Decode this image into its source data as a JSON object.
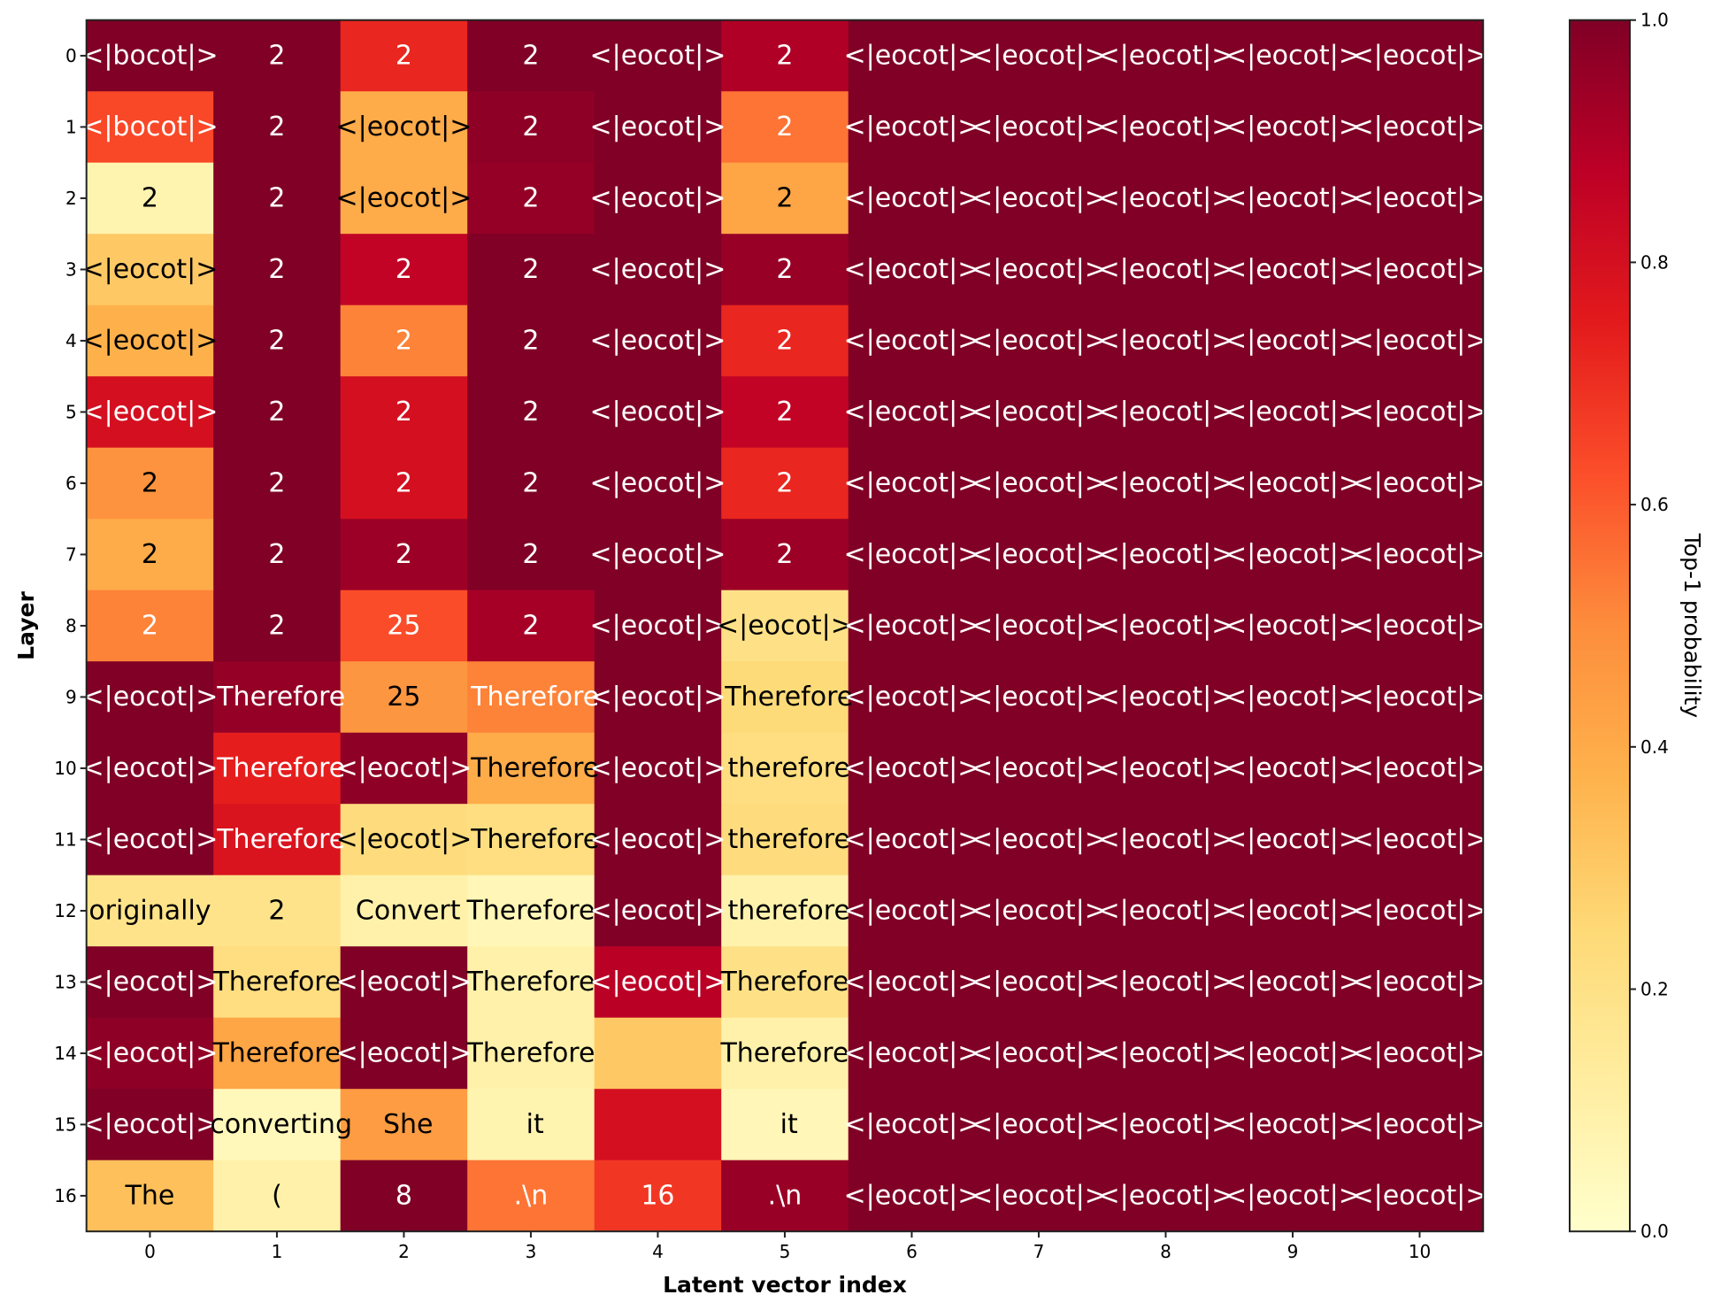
{
  "chart_data": {
    "type": "heatmap",
    "title": "",
    "xlabel": "Latent vector index",
    "ylabel": "Layer",
    "x": [
      "0",
      "1",
      "2",
      "3",
      "4",
      "5",
      "6",
      "7",
      "8",
      "9",
      "10"
    ],
    "y": [
      "0",
      "1",
      "2",
      "3",
      "4",
      "5",
      "6",
      "7",
      "8",
      "9",
      "10",
      "11",
      "12",
      "13",
      "14",
      "15",
      "16"
    ],
    "colormap": "YlOrRd",
    "colorbar": {
      "label": "Top-1 probability",
      "range": [
        0.0,
        1.0
      ],
      "ticks": [
        "0.0",
        "0.2",
        "0.4",
        "0.6",
        "0.8",
        "1.0"
      ]
    },
    "labels": [
      [
        "<|bocot|>",
        "2",
        "2",
        "2",
        "<|eocot|>",
        "2",
        "<|eocot|>",
        "<|eocot|>",
        "<|eocot|>",
        "<|eocot|>",
        "<|eocot|>"
      ],
      [
        "<|bocot|>",
        "2",
        "<|eocot|>",
        "2",
        "<|eocot|>",
        "2",
        "<|eocot|>",
        "<|eocot|>",
        "<|eocot|>",
        "<|eocot|>",
        "<|eocot|>"
      ],
      [
        "2",
        "2",
        "<|eocot|>",
        "2",
        "<|eocot|>",
        "2",
        "<|eocot|>",
        "<|eocot|>",
        "<|eocot|>",
        "<|eocot|>",
        "<|eocot|>"
      ],
      [
        "<|eocot|>",
        "2",
        "2",
        "2",
        "<|eocot|>",
        "2",
        "<|eocot|>",
        "<|eocot|>",
        "<|eocot|>",
        "<|eocot|>",
        "<|eocot|>"
      ],
      [
        "<|eocot|>",
        "2",
        "2",
        "2",
        "<|eocot|>",
        "2",
        "<|eocot|>",
        "<|eocot|>",
        "<|eocot|>",
        "<|eocot|>",
        "<|eocot|>"
      ],
      [
        "<|eocot|>",
        "2",
        "2",
        "2",
        "<|eocot|>",
        "2",
        "<|eocot|>",
        "<|eocot|>",
        "<|eocot|>",
        "<|eocot|>",
        "<|eocot|>"
      ],
      [
        "2",
        "2",
        "2",
        "2",
        "<|eocot|>",
        "2",
        "<|eocot|>",
        "<|eocot|>",
        "<|eocot|>",
        "<|eocot|>",
        "<|eocot|>"
      ],
      [
        "2",
        "2",
        "2",
        "2",
        "<|eocot|>",
        "2",
        "<|eocot|>",
        "<|eocot|>",
        "<|eocot|>",
        "<|eocot|>",
        "<|eocot|>"
      ],
      [
        "2",
        "2",
        "25",
        "2",
        "<|eocot|>",
        "<|eocot|>",
        "<|eocot|>",
        "<|eocot|>",
        "<|eocot|>",
        "<|eocot|>",
        "<|eocot|>"
      ],
      [
        "<|eocot|>",
        " Therefore",
        "25",
        " Therefore",
        "<|eocot|>",
        " Therefore",
        "<|eocot|>",
        "<|eocot|>",
        "<|eocot|>",
        "<|eocot|>",
        "<|eocot|>"
      ],
      [
        "<|eocot|>",
        " Therefore",
        "<|eocot|>",
        " Therefore",
        "<|eocot|>",
        " therefore",
        "<|eocot|>",
        "<|eocot|>",
        "<|eocot|>",
        "<|eocot|>",
        "<|eocot|>"
      ],
      [
        "<|eocot|>",
        " Therefore",
        "<|eocot|>",
        " Therefore",
        "<|eocot|>",
        " therefore",
        "<|eocot|>",
        "<|eocot|>",
        "<|eocot|>",
        "<|eocot|>",
        "<|eocot|>"
      ],
      [
        "originally",
        "2",
        " Convert",
        "Therefore",
        "<|eocot|>",
        " therefore",
        "<|eocot|>",
        "<|eocot|>",
        "<|eocot|>",
        "<|eocot|>",
        "<|eocot|>"
      ],
      [
        "<|eocot|>",
        "Therefore",
        "<|eocot|>",
        "Therefore",
        "<|eocot|>",
        "Therefore",
        "<|eocot|>",
        "<|eocot|>",
        "<|eocot|>",
        "<|eocot|>",
        "<|eocot|>"
      ],
      [
        "<|eocot|>",
        "Therefore",
        "<|eocot|>",
        "Therefore",
        " ",
        "Therefore",
        "<|eocot|>",
        "<|eocot|>",
        "<|eocot|>",
        "<|eocot|>",
        "<|eocot|>"
      ],
      [
        "<|eocot|>",
        " converting",
        " She",
        " it",
        " ",
        " it",
        "<|eocot|>",
        "<|eocot|>",
        "<|eocot|>",
        "<|eocot|>",
        "<|eocot|>"
      ],
      [
        "The",
        "(",
        "8",
        ".\\n",
        "16",
        ".\\n",
        "<|eocot|>",
        "<|eocot|>",
        "<|eocot|>",
        "<|eocot|>",
        "<|eocot|>"
      ]
    ],
    "values": [
      [
        1.0,
        1.0,
        0.72,
        1.0,
        1.0,
        0.9,
        1.0,
        1.0,
        1.0,
        1.0,
        1.0
      ],
      [
        0.64,
        1.0,
        0.4,
        0.97,
        1.0,
        0.55,
        1.0,
        1.0,
        1.0,
        1.0,
        1.0
      ],
      [
        0.08,
        1.0,
        0.4,
        0.96,
        1.0,
        0.42,
        1.0,
        1.0,
        1.0,
        1.0,
        1.0
      ],
      [
        0.3,
        1.0,
        0.86,
        1.0,
        1.0,
        0.95,
        1.0,
        1.0,
        1.0,
        1.0,
        1.0
      ],
      [
        0.38,
        1.0,
        0.52,
        1.0,
        1.0,
        0.72,
        1.0,
        1.0,
        1.0,
        1.0,
        1.0
      ],
      [
        0.8,
        1.0,
        0.8,
        1.0,
        1.0,
        0.86,
        1.0,
        1.0,
        1.0,
        1.0,
        1.0
      ],
      [
        0.48,
        1.0,
        0.8,
        1.0,
        1.0,
        0.72,
        1.0,
        1.0,
        1.0,
        1.0,
        1.0
      ],
      [
        0.4,
        1.0,
        0.94,
        1.0,
        1.0,
        0.94,
        1.0,
        1.0,
        1.0,
        1.0,
        1.0
      ],
      [
        0.52,
        1.0,
        0.63,
        0.92,
        1.0,
        0.2,
        1.0,
        1.0,
        1.0,
        1.0,
        1.0
      ],
      [
        1.0,
        0.96,
        0.47,
        0.52,
        1.0,
        0.24,
        1.0,
        1.0,
        1.0,
        1.0,
        1.0
      ],
      [
        1.0,
        0.74,
        0.97,
        0.4,
        1.0,
        0.22,
        1.0,
        1.0,
        1.0,
        1.0,
        1.0
      ],
      [
        1.0,
        0.78,
        0.23,
        0.22,
        1.0,
        0.23,
        1.0,
        1.0,
        1.0,
        1.0,
        1.0
      ],
      [
        0.19,
        0.19,
        0.1,
        0.06,
        1.0,
        0.09,
        1.0,
        1.0,
        1.0,
        1.0,
        1.0
      ],
      [
        1.0,
        0.22,
        1.0,
        0.1,
        0.88,
        0.2,
        1.0,
        1.0,
        1.0,
        1.0,
        1.0
      ],
      [
        0.97,
        0.42,
        1.0,
        0.1,
        0.3,
        0.1,
        1.0,
        1.0,
        1.0,
        1.0,
        1.0
      ],
      [
        1.0,
        0.05,
        0.45,
        0.08,
        0.8,
        0.06,
        1.0,
        1.0,
        1.0,
        1.0,
        1.0
      ],
      [
        0.33,
        0.1,
        1.0,
        0.55,
        0.68,
        0.95,
        1.0,
        1.0,
        1.0,
        1.0,
        1.0
      ]
    ],
    "text_color_threshold": 0.5,
    "text_colors": {
      "dark": "#000000",
      "light": "#ffffff"
    },
    "colormap_stops": [
      "#ffffcc",
      "#ffeda0",
      "#fed976",
      "#feb24c",
      "#fd8d3c",
      "#fc4e2a",
      "#e31a1c",
      "#bd0026",
      "#800026"
    ],
    "grid": false,
    "legend": "colorbar-right"
  }
}
